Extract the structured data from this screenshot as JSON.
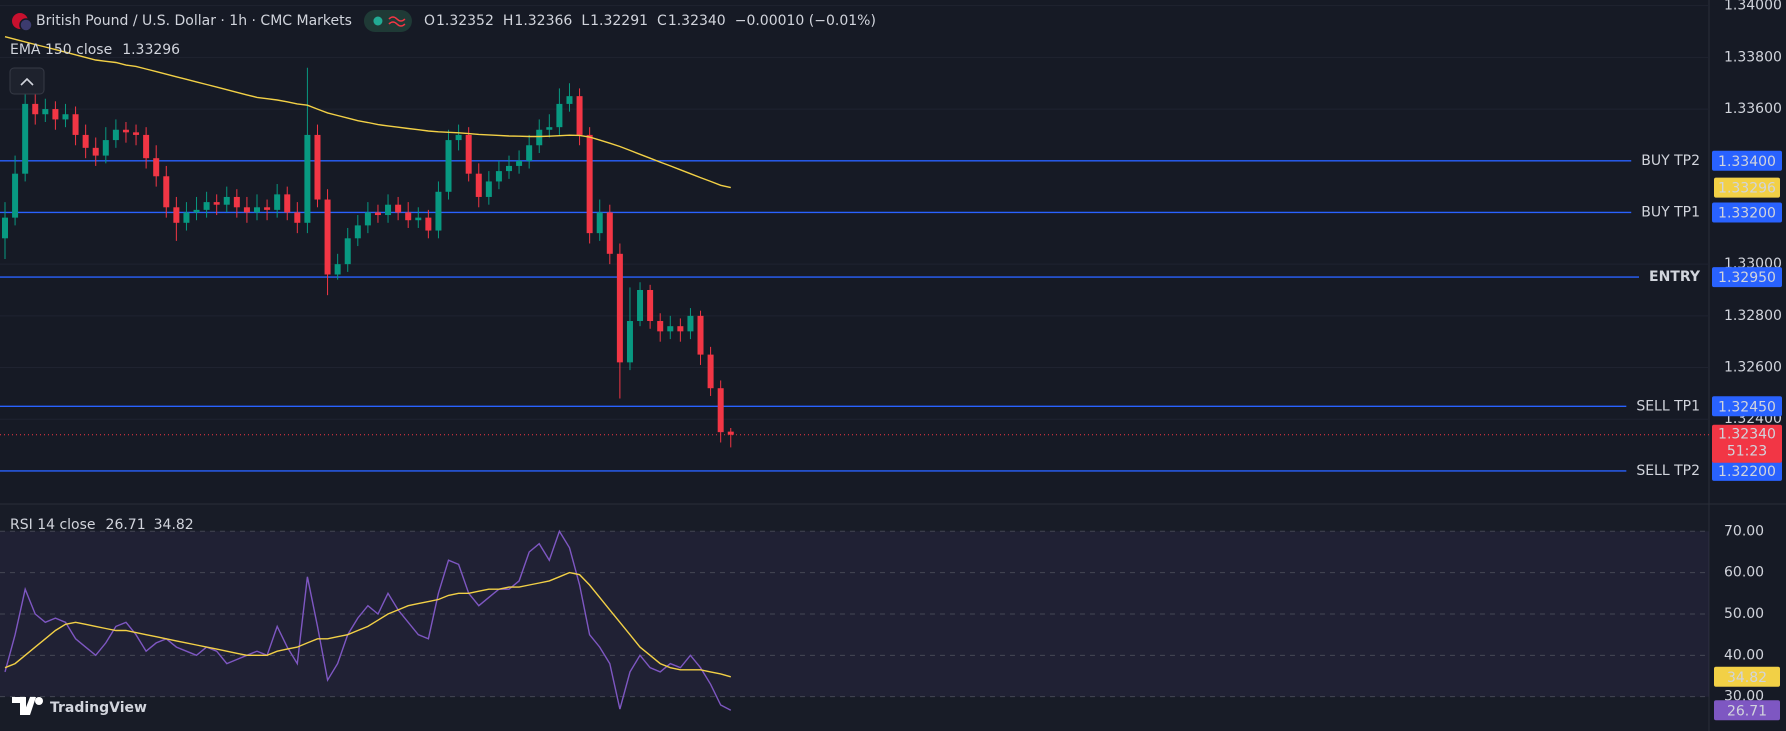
{
  "chart_data": [
    {
      "type": "candlestick",
      "title": "British Pound / U.S. Dollar · 1h · CMC Markets",
      "ohlc_legend": [
        {
          "label": "O",
          "value": "1.32352"
        },
        {
          "label": "H",
          "value": "1.32366"
        },
        {
          "label": "L",
          "value": "1.32291"
        },
        {
          "label": "C",
          "value": "1.32340"
        }
      ],
      "change": "−0.00010 (−0.01%)",
      "up_color": "#089981",
      "down_color": "#f23645",
      "open": [
        1.331,
        1.3318,
        1.3335,
        1.3362,
        1.3358,
        1.336,
        1.3356,
        1.3358,
        1.335,
        1.3345,
        1.3342,
        1.3348,
        1.3352,
        1.3351,
        1.335,
        1.3341,
        1.3334,
        1.3322,
        1.3316,
        1.332,
        1.3321,
        1.3324,
        1.3323,
        1.3326,
        1.3322,
        1.332,
        1.3322,
        1.3321,
        1.3327,
        1.332,
        1.3316,
        1.335,
        1.3325,
        1.3296,
        1.33,
        1.331,
        1.3315,
        1.332,
        1.3319,
        1.3323,
        1.332,
        1.3317,
        1.3318,
        1.3313,
        1.3328,
        1.3348,
        1.335,
        1.3335,
        1.3326,
        1.3332,
        1.3336,
        1.3338,
        1.334,
        1.3346,
        1.3352,
        1.3353,
        1.3362,
        1.3365,
        1.335,
        1.3312,
        1.332,
        1.3304,
        1.3262,
        1.3278,
        1.329,
        1.3278,
        1.3274,
        1.3276,
        1.3274,
        1.328,
        1.3265,
        1.3252,
        1.32352
      ],
      "high": [
        1.3324,
        1.3342,
        1.3368,
        1.3366,
        1.3364,
        1.3363,
        1.3362,
        1.3361,
        1.3354,
        1.3349,
        1.3353,
        1.3356,
        1.3355,
        1.3354,
        1.3353,
        1.3346,
        1.3338,
        1.3326,
        1.3324,
        1.3326,
        1.3328,
        1.3327,
        1.333,
        1.3329,
        1.3326,
        1.3327,
        1.3325,
        1.3331,
        1.333,
        1.3324,
        1.3376,
        1.3354,
        1.3329,
        1.3304,
        1.3314,
        1.3319,
        1.3324,
        1.3323,
        1.3327,
        1.3326,
        1.3324,
        1.3322,
        1.3321,
        1.3332,
        1.3352,
        1.3354,
        1.3353,
        1.3339,
        1.3336,
        1.334,
        1.3342,
        1.3344,
        1.335,
        1.3356,
        1.3358,
        1.3368,
        1.337,
        1.3368,
        1.3353,
        1.3325,
        1.3323,
        1.3308,
        1.3291,
        1.3293,
        1.3292,
        1.3281,
        1.328,
        1.3279,
        1.3283,
        1.3282,
        1.3268,
        1.3255,
        1.32366
      ],
      "low": [
        1.3302,
        1.3315,
        1.3332,
        1.3354,
        1.3355,
        1.3352,
        1.3353,
        1.3346,
        1.3341,
        1.3338,
        1.3339,
        1.3345,
        1.3347,
        1.3346,
        1.3337,
        1.333,
        1.3318,
        1.3309,
        1.3313,
        1.3317,
        1.3318,
        1.3319,
        1.332,
        1.3318,
        1.3316,
        1.3317,
        1.3317,
        1.3318,
        1.3317,
        1.3312,
        1.3312,
        1.3322,
        1.3288,
        1.3294,
        1.3297,
        1.3307,
        1.3312,
        1.3316,
        1.3316,
        1.3317,
        1.3314,
        1.3314,
        1.331,
        1.331,
        1.3325,
        1.3344,
        1.3332,
        1.3322,
        1.3323,
        1.3329,
        1.3333,
        1.3335,
        1.3337,
        1.3343,
        1.3349,
        1.335,
        1.3359,
        1.3346,
        1.3308,
        1.3309,
        1.33,
        1.3248,
        1.3259,
        1.3276,
        1.3275,
        1.327,
        1.3271,
        1.327,
        1.3271,
        1.3261,
        1.3249,
        1.3231,
        1.32291
      ],
      "close": [
        1.3318,
        1.3335,
        1.3362,
        1.3358,
        1.336,
        1.3356,
        1.3358,
        1.335,
        1.3345,
        1.3342,
        1.3348,
        1.3352,
        1.3351,
        1.335,
        1.3341,
        1.3334,
        1.3322,
        1.3316,
        1.332,
        1.3321,
        1.3324,
        1.3323,
        1.3326,
        1.3322,
        1.332,
        1.3322,
        1.3321,
        1.3327,
        1.332,
        1.3316,
        1.335,
        1.3325,
        1.3296,
        1.33,
        1.331,
        1.3315,
        1.332,
        1.3319,
        1.3323,
        1.332,
        1.3317,
        1.3318,
        1.3313,
        1.3328,
        1.3348,
        1.335,
        1.3335,
        1.3326,
        1.3332,
        1.3336,
        1.3338,
        1.334,
        1.3346,
        1.3352,
        1.3353,
        1.3362,
        1.3365,
        1.335,
        1.3312,
        1.332,
        1.3304,
        1.3262,
        1.3278,
        1.329,
        1.3278,
        1.3274,
        1.3276,
        1.3274,
        1.328,
        1.3265,
        1.3252,
        1.3235,
        1.3234
      ],
      "last_price_label": "1.32340",
      "countdown": "51:23",
      "ema": {
        "name": "EMA 150 close",
        "color": "#f2d046",
        "values": [
          1.3388,
          1.3387,
          1.3386,
          1.3385,
          1.3384,
          1.3383,
          1.3382,
          1.3381,
          1.338,
          1.3379,
          1.33785,
          1.3378,
          1.3377,
          1.33765,
          1.33755,
          1.33745,
          1.33735,
          1.33725,
          1.33715,
          1.33705,
          1.33695,
          1.33685,
          1.33675,
          1.33665,
          1.33655,
          1.33645,
          1.3364,
          1.33635,
          1.33628,
          1.3362,
          1.33615,
          1.336,
          1.33585,
          1.33575,
          1.33565,
          1.33555,
          1.33548,
          1.3354,
          1.33535,
          1.3353,
          1.33525,
          1.3352,
          1.33515,
          1.33512,
          1.3351,
          1.33508,
          1.33505,
          1.33502,
          1.335,
          1.33498,
          1.33496,
          1.33495,
          1.33494,
          1.33494,
          1.33495,
          1.33497,
          1.33499,
          1.33498,
          1.33492,
          1.3348,
          1.33468,
          1.33455,
          1.3344,
          1.33425,
          1.3341,
          1.33395,
          1.3338,
          1.33365,
          1.3335,
          1.33335,
          1.3332,
          1.33305,
          1.33296
        ]
      },
      "levels": [
        {
          "name": "BUY TP2",
          "value": 1.334,
          "label": "1.33400",
          "text_color": "#4caf50"
        },
        {
          "name": "BUY TP1",
          "value": 1.332,
          "label": "1.33200",
          "text_color": "#4caf50"
        },
        {
          "name": "ENTRY",
          "value": 1.3295,
          "label": "1.32950",
          "text_color": "#ffeb3b"
        },
        {
          "name": "SELL TP1",
          "value": 1.3245,
          "label": "1.32450",
          "text_color": "#f23645"
        },
        {
          "name": "SELL TP2",
          "value": 1.322,
          "label": "1.32200",
          "text_color": "#f23645"
        }
      ],
      "level_color": "#2962ff",
      "ylim": [
        1.32072,
        1.34022
      ],
      "yticks": [
        {
          "value": 1.34,
          "label": "1.34000"
        },
        {
          "value": 1.338,
          "label": "1.33800"
        },
        {
          "value": 1.336,
          "label": "1.33600"
        },
        {
          "value": 1.33,
          "label": "1.33000"
        },
        {
          "value": 1.328,
          "label": "1.32800"
        },
        {
          "value": 1.326,
          "label": "1.32600"
        },
        {
          "value": 1.324,
          "label": "1.32400"
        }
      ],
      "grid": true,
      "watermark": "TradingView"
    },
    {
      "type": "line",
      "title": "RSI 14 close",
      "series": [
        {
          "name": "RSI",
          "color": "#7e57c2",
          "values": [
            36,
            45,
            56,
            50,
            48,
            49,
            48,
            44,
            42,
            40,
            43,
            47,
            48,
            45,
            41,
            43,
            44,
            42,
            41,
            40,
            42,
            41,
            38,
            39,
            40,
            41,
            40,
            47,
            42,
            38,
            59,
            47,
            34,
            38,
            45,
            49,
            52,
            50,
            55,
            51,
            48,
            45,
            44,
            55,
            63,
            62,
            55,
            52,
            54,
            56,
            56,
            58,
            65,
            67,
            63,
            70,
            66,
            57,
            45,
            42,
            38,
            27,
            36,
            40,
            37,
            36,
            38,
            37,
            40,
            37,
            33,
            28,
            26.71
          ]
        },
        {
          "name": "RSI MA",
          "color": "#f2d046",
          "values": [
            37,
            38,
            40,
            42,
            44,
            46,
            47.5,
            48,
            47.5,
            47,
            46.5,
            46,
            46,
            45.5,
            45,
            44.5,
            44,
            43.5,
            43,
            42.5,
            42,
            41.5,
            41,
            40.5,
            40,
            40,
            40,
            41,
            41.5,
            42,
            43,
            44,
            44,
            44.5,
            45,
            46,
            47,
            48.5,
            50,
            51,
            52,
            52.5,
            53,
            53.5,
            54.5,
            55,
            55,
            55.5,
            56,
            56,
            56.5,
            56.5,
            57,
            57.5,
            58,
            59,
            60,
            59.5,
            57,
            54,
            51,
            48,
            45,
            42,
            40,
            38,
            37,
            36.5,
            36.5,
            36.5,
            36,
            35.5,
            34.82
          ]
        }
      ],
      "band": [
        30,
        70
      ],
      "ylim": [
        21.7,
        76.6
      ],
      "yticks": [
        {
          "value": 30,
          "label": "30.00"
        },
        {
          "value": 40,
          "label": "40.00"
        },
        {
          "value": 50,
          "label": "50.00"
        },
        {
          "value": 60,
          "label": "60.00"
        },
        {
          "value": 70,
          "label": "70.00"
        }
      ],
      "grid": true
    }
  ]
}
